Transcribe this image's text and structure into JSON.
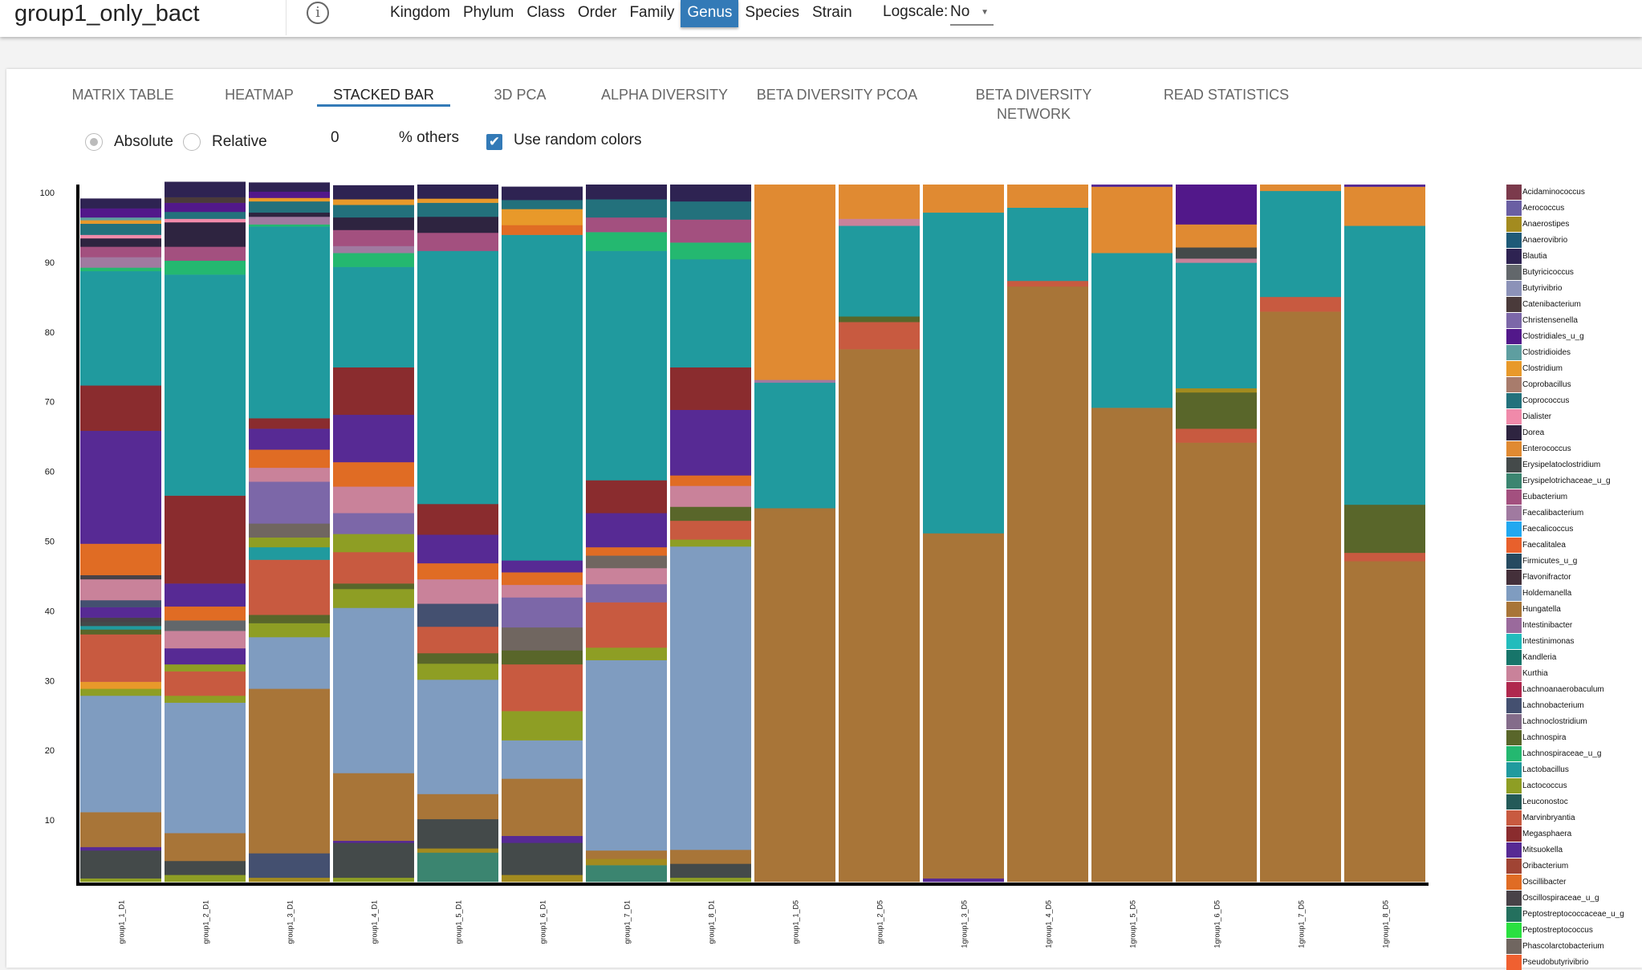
{
  "header": {
    "title": "group1_only_bact",
    "info_icon": "info-circle-icon",
    "levels": [
      "Kingdom",
      "Phylum",
      "Class",
      "Order",
      "Family",
      "Genus",
      "Species",
      "Strain"
    ],
    "active_level": "Genus",
    "logscale_label": "Logscale:",
    "logscale_value": "No"
  },
  "tabs": [
    "MATRIX TABLE",
    "HEATMAP",
    "STACKED BAR",
    "3D PCA",
    "ALPHA DIVERSITY",
    "BETA DIVERSITY PCOA",
    "BETA DIVERSITY NETWORK",
    "READ STATISTICS"
  ],
  "active_tab": "STACKED BAR",
  "controls": {
    "absolute_label": "Absolute",
    "relative_label": "Relative",
    "mode": "Absolute",
    "others_value": "0",
    "others_label": "% others",
    "random_colors_label": "Use random colors",
    "random_colors_checked": true
  },
  "accent_color": "#337ab7",
  "chart_data": {
    "type": "bar",
    "stacked": true,
    "ylim": [
      0,
      100
    ],
    "yticks": [
      10,
      20,
      30,
      40,
      50,
      60,
      70,
      80,
      90,
      100
    ],
    "legend_placement": "right",
    "legend": [
      [
        "Acidaminococcus",
        "#7b3a4c"
      ],
      [
        "Aerococcus",
        "#6a5fa3"
      ],
      [
        "Anaerostipes",
        "#a38b1f"
      ],
      [
        "Anaerovibrio",
        "#1f5a78"
      ],
      [
        "Blautia",
        "#2e2352"
      ],
      [
        "Butyricicoccus",
        "#62676b"
      ],
      [
        "Butyrivibrio",
        "#8c92b8"
      ],
      [
        "Catenibacterium",
        "#4a3a3a"
      ],
      [
        "Christensenella",
        "#7c67a8"
      ],
      [
        "Clostridiales_u_g",
        "#52188a"
      ],
      [
        "Clostridioides",
        "#5e9ea0"
      ],
      [
        "Clostridium",
        "#e8992a"
      ],
      [
        "Coprobacillus",
        "#a87c6c"
      ],
      [
        "Coprococcus",
        "#23717c"
      ],
      [
        "Dialister",
        "#f08aaa"
      ],
      [
        "Dorea",
        "#2e2440"
      ],
      [
        "Enterococcus",
        "#e08a32"
      ],
      [
        "Erysipelatoclostridium",
        "#444a4a"
      ],
      [
        "Erysipelotrichaceae_u_g",
        "#3b8570"
      ],
      [
        "Eubacterium",
        "#a3507f"
      ],
      [
        "Faecalibacterium",
        "#a07aa0"
      ],
      [
        "Faecalicoccus",
        "#22a8f0"
      ],
      [
        "Faecalitalea",
        "#e8602c"
      ],
      [
        "Firmicutes_u_g",
        "#264a60"
      ],
      [
        "Flavonifractor",
        "#44303a"
      ],
      [
        "Holdemanella",
        "#7f9cc0"
      ],
      [
        "Hungatella",
        "#a87538"
      ],
      [
        "Intestinibacter",
        "#9a6a9c"
      ],
      [
        "Intestinimonas",
        "#22bcbc"
      ],
      [
        "Kandleria",
        "#17756a"
      ],
      [
        "Kurthia",
        "#c9829a"
      ],
      [
        "Lachnoanaerobaculum",
        "#b0284e"
      ],
      [
        "Lachnobacterium",
        "#445070"
      ],
      [
        "Lachnoclostridium",
        "#846c8a"
      ],
      [
        "Lachnospira",
        "#59662a"
      ],
      [
        "Lachnospiraceae_u_g",
        "#24b870"
      ],
      [
        "Lactobacillus",
        "#209a9e"
      ],
      [
        "Lactococcus",
        "#8e9e24"
      ],
      [
        "Leuconostoc",
        "#245a58"
      ],
      [
        "Marvinbryantia",
        "#c85a40"
      ],
      [
        "Megasphaera",
        "#8a2c2e"
      ],
      [
        "Mitsuokella",
        "#572a94"
      ],
      [
        "Oribacterium",
        "#a04434"
      ],
      [
        "Oscillibacter",
        "#e06c24"
      ],
      [
        "Oscillospiraceae_u_g",
        "#484248"
      ],
      [
        "Peptostreptococcaceae_u_g",
        "#24705e"
      ],
      [
        "Peptostreptococcus",
        "#2ae040"
      ],
      [
        "Phascolarctobacterium",
        "#706660"
      ],
      [
        "Pseudobutyrivibrio",
        "#f06030"
      ]
    ],
    "samples": [
      {
        "name": "group1_1_D1",
        "segments": [
          [
            "Lactococcus",
            0.5
          ],
          [
            "Erysipelatoclostridium",
            4
          ],
          [
            "Mitsuokella",
            0.5
          ],
          [
            "Hungatella",
            5
          ],
          [
            "Holdemanella",
            16.7
          ],
          [
            "Lactococcus",
            1
          ],
          [
            "Clostridium",
            1
          ],
          [
            "Marvinbryantia",
            6.8
          ],
          [
            "Lachnospira",
            0.7
          ],
          [
            "Lactobacillus",
            0.5
          ],
          [
            "Erysipelatoclostridium",
            0.6
          ],
          [
            "Oscillospiraceae_u_g",
            0.6
          ],
          [
            "Mitsuokella",
            1.5
          ],
          [
            "Lachnobacterium",
            1
          ],
          [
            "Kurthia",
            3
          ],
          [
            "Oscillospiraceae_u_g",
            0.6
          ],
          [
            "Oscillibacter",
            4.5
          ],
          [
            "Mitsuokella",
            16.2
          ],
          [
            "Megasphaera",
            6.5
          ],
          [
            "Lactobacillus",
            16.4
          ],
          [
            "Lachnospiraceae_u_g",
            0.5
          ],
          [
            "Faecalibacterium",
            1.5
          ],
          [
            "Eubacterium",
            1.5
          ],
          [
            "Dorea",
            1.2
          ],
          [
            "Dialister",
            0.5
          ],
          [
            "Coprococcus",
            1.6
          ],
          [
            "Clostridium",
            0.5
          ],
          [
            "Clostridioides",
            0.4
          ],
          [
            "Clostridiales_u_g",
            1.3
          ],
          [
            "Blautia",
            1.4
          ]
        ]
      },
      {
        "name": "group1_2_D1",
        "segments": [
          [
            "Lactococcus",
            1
          ],
          [
            "Erysipelatoclostridium",
            2
          ],
          [
            "Hungatella",
            4
          ],
          [
            "Holdemanella",
            18.7
          ],
          [
            "Lactococcus",
            1
          ],
          [
            "Marvinbryantia",
            3.5
          ],
          [
            "Lactococcus",
            1
          ],
          [
            "Mitsuokella",
            2.3
          ],
          [
            "Kurthia",
            2.5
          ],
          [
            "Butyricicoccus",
            1.5
          ],
          [
            "Oscillibacter",
            2
          ],
          [
            "Mitsuokella",
            3.3
          ],
          [
            "Megasphaera",
            12.6
          ],
          [
            "Lactobacillus",
            31.7
          ],
          [
            "Lachnospiraceae_u_g",
            2
          ],
          [
            "Eubacterium",
            2
          ],
          [
            "Dorea",
            3.5
          ],
          [
            "Dialister",
            0.5
          ],
          [
            "Coprococcus",
            1
          ],
          [
            "Clostridiales_u_g",
            1.3
          ],
          [
            "Catenibacterium",
            0.8
          ],
          [
            "Blautia",
            2.2
          ]
        ]
      },
      {
        "name": "group1_3_D1",
        "segments": [
          [
            "Anaerostipes",
            0.6
          ],
          [
            "Lachnobacterium",
            3.5
          ],
          [
            "Hungatella",
            23.6
          ],
          [
            "Holdemanella",
            7.4
          ],
          [
            "Lactococcus",
            2
          ],
          [
            "Lachnospira",
            1.2
          ],
          [
            "Marvinbryantia",
            7.9
          ],
          [
            "Lactobacillus",
            1.8
          ],
          [
            "Lactococcus",
            1.4
          ],
          [
            "Phascolarctobacterium",
            2
          ],
          [
            "Christensenella",
            6
          ],
          [
            "Kurthia",
            2
          ],
          [
            "Oscillibacter",
            2.6
          ],
          [
            "Mitsuokella",
            3
          ],
          [
            "Megasphaera",
            1.5
          ],
          [
            "Lactobacillus",
            27.5
          ],
          [
            "Lachnospiraceae_u_g",
            0.3
          ],
          [
            "Faecalibacterium",
            1.1
          ],
          [
            "Dorea",
            0.6
          ],
          [
            "Coprococcus",
            1.6
          ],
          [
            "Clostridium",
            0.5
          ],
          [
            "Clostridiales_u_g",
            0.9
          ],
          [
            "Blautia",
            1.3
          ]
        ]
      },
      {
        "name": "group1_4_D1",
        "segments": [
          [
            "Lactococcus",
            0.6
          ],
          [
            "Erysipelatoclostridium",
            5
          ],
          [
            "Mitsuokella",
            0.3
          ],
          [
            "Hungatella",
            9.7
          ],
          [
            "Holdemanella",
            23.7
          ],
          [
            "Lactococcus",
            2.7
          ],
          [
            "Lachnospira",
            0.8
          ],
          [
            "Marvinbryantia",
            4.5
          ],
          [
            "Lactococcus",
            2.6
          ],
          [
            "Christensenella",
            3
          ],
          [
            "Kurthia",
            3.8
          ],
          [
            "Oscillibacter",
            3.5
          ],
          [
            "Mitsuokella",
            6.8
          ],
          [
            "Megasphaera",
            6.8
          ],
          [
            "Lactobacillus",
            14.4
          ],
          [
            "Lachnospiraceae_u_g",
            2
          ],
          [
            "Faecalibacterium",
            1
          ],
          [
            "Eubacterium",
            2.3
          ],
          [
            "Dorea",
            1.8
          ],
          [
            "Coprococcus",
            1.8
          ],
          [
            "Clostridium",
            0.8
          ],
          [
            "Blautia",
            2
          ]
        ]
      },
      {
        "name": "group1_5_D1",
        "segments": [
          [
            "Erysipelotrichaceae_u_g",
            4.2
          ],
          [
            "Anaerostipes",
            0.6
          ],
          [
            "Erysipelatoclostridium",
            4.2
          ],
          [
            "Hungatella",
            3.6
          ],
          [
            "Holdemanella",
            16.4
          ],
          [
            "Lactococcus",
            2.3
          ],
          [
            "Lachnospira",
            1.5
          ],
          [
            "Marvinbryantia",
            3.8
          ],
          [
            "Lachnobacterium",
            3.3
          ],
          [
            "Kurthia",
            3.5
          ],
          [
            "Oscillibacter",
            2.3
          ],
          [
            "Mitsuokella",
            4.1
          ],
          [
            "Megasphaera",
            4.4
          ],
          [
            "Lactobacillus",
            36.3
          ],
          [
            "Eubacterium",
            2.6
          ],
          [
            "Dorea",
            2.3
          ],
          [
            "Coprococcus",
            2
          ],
          [
            "Clostridium",
            0.6
          ],
          [
            "Blautia",
            2
          ]
        ]
      },
      {
        "name": "group1_6_D1",
        "segments": [
          [
            "Anaerostipes",
            1
          ],
          [
            "Erysipelatoclostridium",
            4.6
          ],
          [
            "Mitsuokella",
            1
          ],
          [
            "Hungatella",
            8.2
          ],
          [
            "Holdemanella",
            5.5
          ],
          [
            "Lactococcus",
            4.2
          ],
          [
            "Marvinbryantia",
            6.7
          ],
          [
            "Lachnospira",
            2
          ],
          [
            "Phascolarctobacterium",
            3.3
          ],
          [
            "Christensenella",
            4.3
          ],
          [
            "Kurthia",
            1.8
          ],
          [
            "Oscillibacter",
            1.8
          ],
          [
            "Mitsuokella",
            1.7
          ],
          [
            "Lactobacillus",
            46.7
          ],
          [
            "Oscillibacter",
            1.4
          ],
          [
            "Clostridium",
            2.3
          ],
          [
            "Coprococcus",
            1.3
          ],
          [
            "Blautia",
            1.9
          ]
        ]
      },
      {
        "name": "group1_7_D1",
        "segments": [
          [
            "Erysipelotrichaceae_u_g",
            2.4
          ],
          [
            "Anaerostipes",
            0.9
          ],
          [
            "Hungatella",
            1.2
          ],
          [
            "Holdemanella",
            27.3
          ],
          [
            "Lactococcus",
            1.8
          ],
          [
            "Marvinbryantia",
            6.5
          ],
          [
            "Christensenella",
            2.6
          ],
          [
            "Kurthia",
            2.3
          ],
          [
            "Phascolarctobacterium",
            1.8
          ],
          [
            "Oscillibacter",
            1.2
          ],
          [
            "Mitsuokella",
            4.9
          ],
          [
            "Megasphaera",
            4.7
          ],
          [
            "Lactobacillus",
            32.9
          ],
          [
            "Lachnospiraceae_u_g",
            2.7
          ],
          [
            "Eubacterium",
            2.1
          ],
          [
            "Coprococcus",
            2.6
          ],
          [
            "Blautia",
            2.1
          ]
        ]
      },
      {
        "name": "group1_8_D1",
        "segments": [
          [
            "Lactococcus",
            0.6
          ],
          [
            "Erysipelatoclostridium",
            2
          ],
          [
            "Hungatella",
            2
          ],
          [
            "Holdemanella",
            43.5
          ],
          [
            "Lactococcus",
            1
          ],
          [
            "Marvinbryantia",
            2.7
          ],
          [
            "Lachnospira",
            2
          ],
          [
            "Kurthia",
            3
          ],
          [
            "Oscillibacter",
            1.5
          ],
          [
            "Mitsuokella",
            9.4
          ],
          [
            "Megasphaera",
            6.1
          ],
          [
            "Lactobacillus",
            15.5
          ],
          [
            "Lachnospiraceae_u_g",
            2.4
          ],
          [
            "Eubacterium",
            3.3
          ],
          [
            "Coprococcus",
            2.6
          ],
          [
            "Blautia",
            2.4
          ]
        ]
      },
      {
        "name": "group1_1_D5",
        "segments": [
          [
            "Hungatella",
            53.6
          ],
          [
            "Lactobacillus",
            18
          ],
          [
            "Faecalibacterium",
            0.4
          ],
          [
            "Enterococcus",
            28
          ]
        ]
      },
      {
        "name": "group1_2_D5",
        "segments": [
          [
            "Hungatella",
            76.4
          ],
          [
            "Marvinbryantia",
            3.9
          ],
          [
            "Lachnospira",
            0.8
          ],
          [
            "Lactobacillus",
            13
          ],
          [
            "Kurthia",
            1
          ],
          [
            "Enterococcus",
            4.9
          ]
        ]
      },
      {
        "name": "1group1_3_D5",
        "segments": [
          [
            "Mitsuokella",
            0.5
          ],
          [
            "Hungatella",
            49.5
          ],
          [
            "Lactobacillus",
            46
          ],
          [
            "Enterococcus",
            4
          ]
        ]
      },
      {
        "name": "1group1_4_D5",
        "segments": [
          [
            "Hungatella",
            85.4
          ],
          [
            "Marvinbryantia",
            0.8
          ],
          [
            "Lactobacillus",
            10.5
          ],
          [
            "Enterococcus",
            3.3
          ]
        ]
      },
      {
        "name": "1group1_5_D5",
        "segments": [
          [
            "Hungatella",
            68
          ],
          [
            "Lactobacillus",
            22.2
          ],
          [
            "Enterococcus",
            9.5
          ],
          [
            "Mitsuokella",
            0.3
          ]
        ]
      },
      {
        "name": "1group1_6_D5",
        "segments": [
          [
            "Hungatella",
            63
          ],
          [
            "Marvinbryantia",
            2
          ],
          [
            "Lachnospira",
            5.2
          ],
          [
            "Anaerostipes",
            0.6
          ],
          [
            "Lactobacillus",
            18
          ],
          [
            "Kurthia",
            0.6
          ],
          [
            "Erysipelatoclostridium",
            1.6
          ],
          [
            "Enterococcus",
            3.3
          ],
          [
            "Clostridiales_u_g",
            5.7
          ]
        ]
      },
      {
        "name": "1group1_7_D5",
        "segments": [
          [
            "Hungatella",
            81.8
          ],
          [
            "Marvinbryantia",
            2.1
          ],
          [
            "Lactobacillus",
            15.2
          ],
          [
            "Enterococcus",
            0.9
          ]
        ]
      },
      {
        "name": "1group1_8_D5",
        "segments": [
          [
            "Hungatella",
            46
          ],
          [
            "Marvinbryantia",
            1.2
          ],
          [
            "Lachnospira",
            6.9
          ],
          [
            "Lactobacillus",
            40
          ],
          [
            "Enterococcus",
            5.6
          ],
          [
            "Mitsuokella",
            0.3
          ]
        ]
      }
    ]
  }
}
